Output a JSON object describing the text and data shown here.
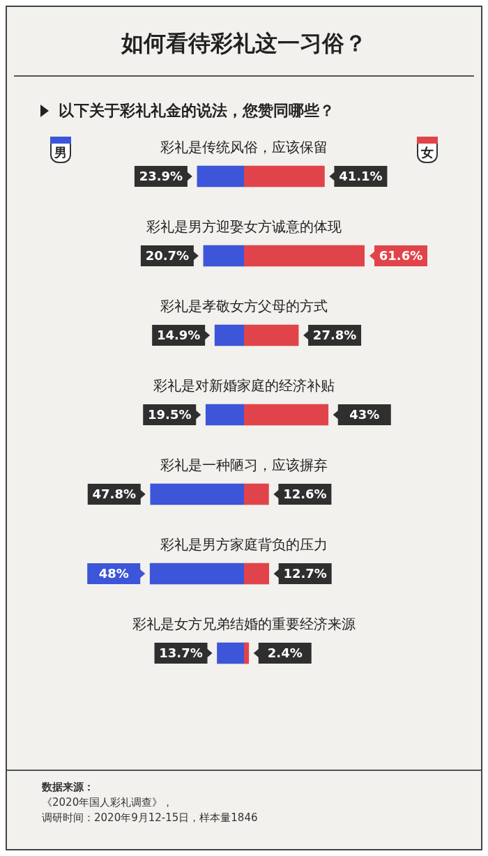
{
  "chart_data": [
    {
      "type": "bar",
      "orientation": "horizontal",
      "title": "如何看待彩礼这一习俗？",
      "subtitle": "以下关于彩礼礼金的说法，您赞同哪些？",
      "categories": [
        "彩礼是传统风俗，应该保留",
        "彩礼是男方迎娶女方诚意的体现",
        "彩礼是孝敬女方父母的方式",
        "彩礼是对新婚家庭的经济补贴",
        "彩礼是一种陋习，应该摒弃",
        "彩礼是男方家庭背负的压力",
        "彩礼是女方兄弟结婚的重要经济来源"
      ],
      "series": [
        {
          "name": "男",
          "color": "#3c55d9",
          "values": [
            23.9,
            20.7,
            14.9,
            19.5,
            47.8,
            48,
            13.7
          ],
          "value_labels": [
            "23.9%",
            "20.7%",
            "14.9%",
            "19.5%",
            "47.8%",
            "48%",
            "13.7%"
          ]
        }
      ],
      "legend": "top left",
      "annotations": [
        "数据来源：",
        "《2020年国人彩礼调查》，",
        "调研时间：2020年9月12-15日，样本量1846"
      ]
    },
    {
      "type": "bar",
      "orientation": "horizontal",
      "categories": [
        null,
        null,
        null,
        null,
        null,
        null,
        null
      ],
      "series": [
        {
          "name": "女",
          "color": "#e0444a",
          "values": [
            41.1,
            61.6,
            27.8,
            43,
            12.6,
            12.7,
            2.4
          ],
          "value_labels": [
            "41.1%",
            "61.6%",
            "27.8%",
            "43%",
            "12.6%",
            "12.7%",
            "2.4%"
          ]
        }
      ],
      "legend": "top right"
    }
  ]
}
